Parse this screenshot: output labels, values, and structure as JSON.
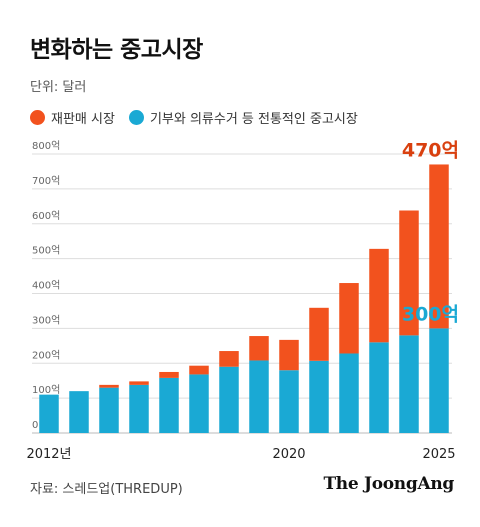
{
  "title": "변화하는 중고시장",
  "unit_label": "단위: 달러",
  "source": "자료: 스레드업(THREDUP)",
  "brand": "The JoongAng",
  "colors": {
    "resale": "#f2521e",
    "traditional": "#1aa9d4"
  },
  "chart_data": {
    "type": "bar",
    "stacked": true,
    "categories": [
      2012,
      2013,
      2014,
      2015,
      2016,
      2017,
      2018,
      2019,
      2020,
      2021,
      2022,
      2023,
      2024,
      2025
    ],
    "x_tick_labels": [
      {
        "category": 2012,
        "label": "2012년"
      },
      {
        "category": 2020,
        "label": "2020"
      },
      {
        "category": 2025,
        "label": "2025"
      }
    ],
    "series": [
      {
        "name": "기부와 의류수거 등 전통적인 중고시장",
        "color": "#1aa9d4",
        "values": [
          110,
          120,
          130,
          138,
          158,
          168,
          190,
          208,
          180,
          207,
          228,
          260,
          280,
          300
        ]
      },
      {
        "name": "재판매 시장",
        "color": "#f2521e",
        "values": [
          0,
          0,
          8,
          10,
          17,
          25,
          45,
          70,
          87,
          152,
          202,
          268,
          358,
          470
        ]
      }
    ],
    "y_ticks": [
      {
        "value": 0,
        "label": "0"
      },
      {
        "value": 100,
        "label": "100억"
      },
      {
        "value": 200,
        "label": "200억"
      },
      {
        "value": 300,
        "label": "300억"
      },
      {
        "value": 400,
        "label": "400억"
      },
      {
        "value": 500,
        "label": "500억"
      },
      {
        "value": 600,
        "label": "600억"
      },
      {
        "value": 700,
        "label": "700억"
      },
      {
        "value": 800,
        "label": "800억"
      }
    ],
    "ylim": [
      0,
      800
    ],
    "grid": true,
    "legend_position": "top-left",
    "annotations": [
      {
        "text": "470억",
        "series": "재판매 시장",
        "category": 2025
      },
      {
        "text": "300억",
        "series": "기부와 의류수거 등 전통적인 중고시장",
        "category": 2025
      }
    ]
  }
}
